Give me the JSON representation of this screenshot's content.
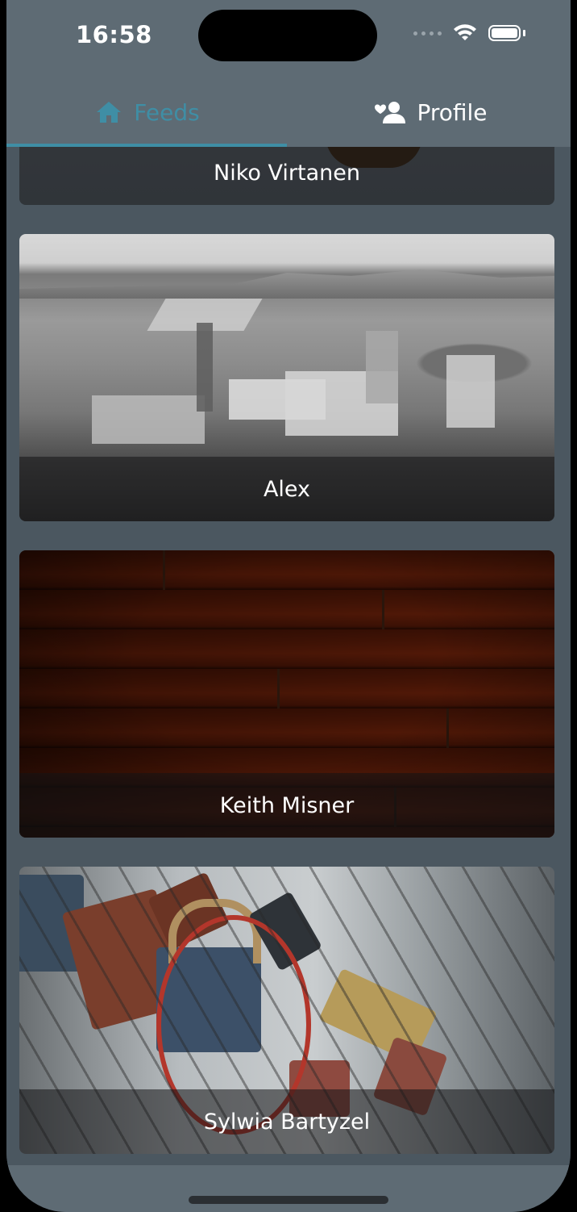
{
  "status_bar": {
    "time": "16:58"
  },
  "tabs": [
    {
      "label": "Feeds",
      "icon": "home-icon",
      "active": true
    },
    {
      "label": "Profile",
      "icon": "user-heart-icon",
      "active": false
    }
  ],
  "colors": {
    "accent": "#3f8ea5",
    "background": "#4b5760",
    "bar": "#5e6b74"
  },
  "feed": {
    "items": [
      {
        "author": "Niko Virtanen"
      },
      {
        "author": "Alex"
      },
      {
        "author": "Keith Misner"
      },
      {
        "author": "Sylwia Bartyzel"
      }
    ]
  }
}
